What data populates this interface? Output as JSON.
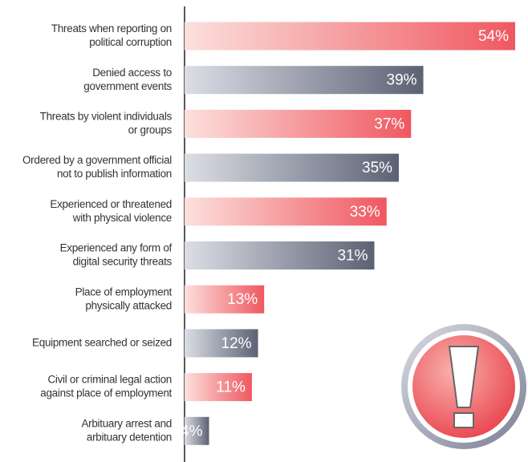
{
  "chart_data": {
    "type": "bar",
    "orientation": "horizontal",
    "categories": [
      [
        "Threats when reporting on",
        "political corruption"
      ],
      [
        "Denied access to",
        "government events"
      ],
      [
        "Threats by violent individuals",
        "or groups"
      ],
      [
        "Ordered by a government official",
        "not to publish information"
      ],
      [
        "Experienced or threatened",
        "with physical violence"
      ],
      [
        "Experienced any form of",
        "digital security threats"
      ],
      [
        "Place of employment",
        "physically attacked"
      ],
      [
        "Equipment searched or seized"
      ],
      [
        "Civil or criminal legal action",
        "against place of employment"
      ],
      [
        "Arbituary arrest and",
        "arbituary detention"
      ]
    ],
    "values": [
      54,
      39,
      37,
      35,
      33,
      31,
      13,
      12,
      11,
      4
    ],
    "value_labels": [
      "54%",
      "39%",
      "37%",
      "35%",
      "33%",
      "31%",
      "13%",
      "12%",
      "11%",
      "4%"
    ],
    "colors": [
      "#ef5860",
      "#5c6274",
      "#ef5860",
      "#5c6274",
      "#ef5860",
      "#5c6274",
      "#ef5860",
      "#5c6274",
      "#ef5860",
      "#5c6274"
    ],
    "xlim": [
      0,
      54
    ]
  }
}
